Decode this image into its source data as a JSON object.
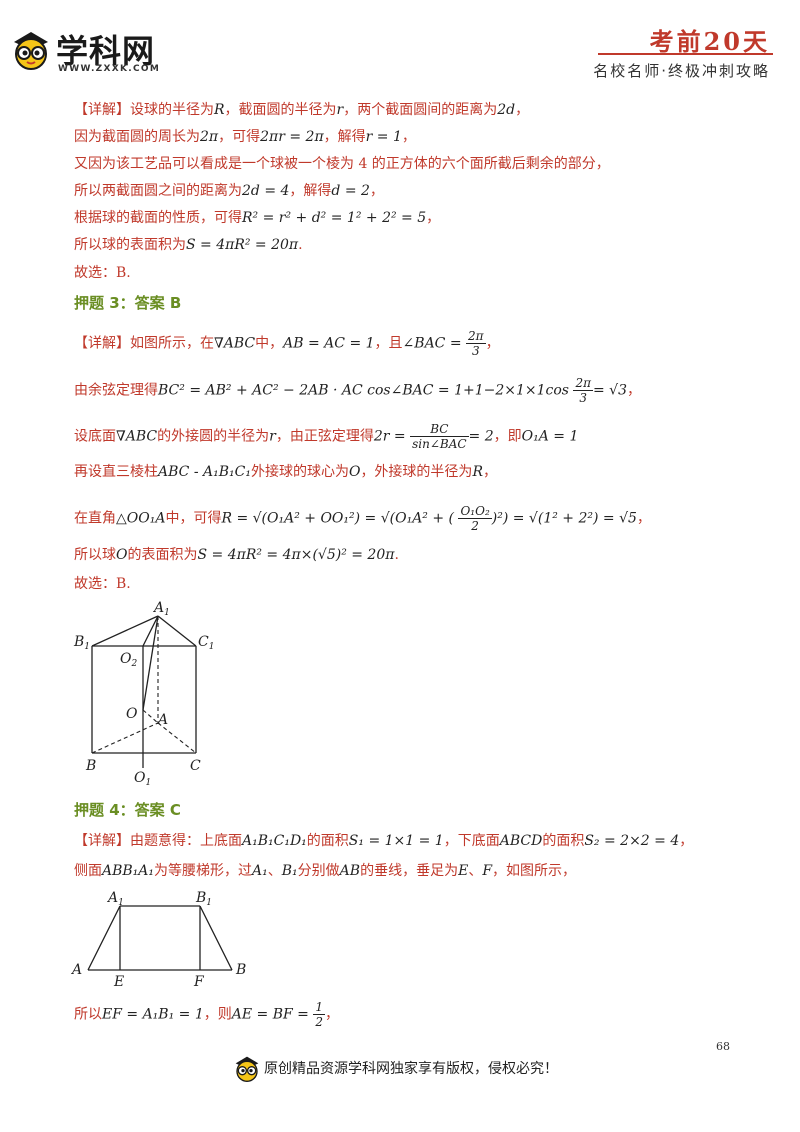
{
  "header": {
    "logo_text": "学科网",
    "logo_url": "WWW.ZXXK.COM",
    "title": "考前20天",
    "subtitle": "名校名师·终极冲刺攻略"
  },
  "section2": {
    "lines": [
      {
        "tag": "【详解】",
        "before": "设球的半径为",
        "m1": "R",
        "mid1": "，截面圆的半径为",
        "m2": "r",
        "mid2": "，两个截面圆间的距离为",
        "m3": "2d",
        "after": "，"
      },
      {
        "before": "因为截面圆的周长为",
        "m1": "2π",
        "mid1": "，可得",
        "m2": "2πr = 2π",
        "mid2": "，解得",
        "m3": "r = 1",
        "after": "，"
      },
      {
        "before": "又因为该工艺品可以看成是一个球被一个棱为 4 的正方体的六个面所截后剩余的部分，"
      },
      {
        "before": "所以两截面圆之间的距离为",
        "m1": "2d = 4",
        "mid1": "，解得",
        "m2": "d = 2",
        "after": "，"
      },
      {
        "before": "根据球的截面的性质，可得",
        "m1": "R² = r² + d² = 1² + 2² = 5",
        "after": "，"
      },
      {
        "before": "所以球的表面积为",
        "m1": "S = 4πR² = 20π",
        "after": "."
      },
      {
        "before": "故选：B."
      }
    ]
  },
  "section3": {
    "heading": "押题 3：答案 B",
    "l1": {
      "tag": "【详解】",
      "a": "如图所示，在",
      "m1": "∇ABC",
      "b": "中，",
      "m2": "AB = AC = 1",
      "c": "，且",
      "m3": "∠BAC =",
      "fn": "2π",
      "fd": "3",
      "d": "，"
    },
    "l2": {
      "a": "由余弦定理得",
      "m1": "BC² = AB² + AC² − 2AB · AC cos∠BAC = 1+1−2×1×1cos",
      "fn": "2π",
      "fd": "3",
      "m2": "= √3",
      "d": "，"
    },
    "l3": {
      "a": "设底面",
      "m1": "∇ABC",
      "b": "的外接圆的半径为",
      "m2": "r",
      "c": "，由正弦定理得",
      "m3": "2r =",
      "fn": "BC",
      "fd": "sin∠BAC",
      "m4": "= 2",
      "d": "，即",
      "m5": "O₁A = 1"
    },
    "l4": {
      "a": "再设直三棱柱",
      "m1": "ABC - A₁B₁C₁",
      "b": "外接球的球心为",
      "m2": "O",
      "c": "，外接球的半径为",
      "m3": "R",
      "d": "，"
    },
    "l5": {
      "a": "在直角",
      "m1": "△OO₁A",
      "b": "中，可得",
      "m2": "R = √(O₁A² + OO₁²) = √(O₁A² + (",
      "fn": "O₁O₂",
      "fd": "2",
      "m3": ")²) = √(1² + 2²) = √5",
      "d": "，"
    },
    "l6": {
      "a": "所以球",
      "m1": "O",
      "b": "的表面积为",
      "m2": "S = 4πR² = 4π×(√5)² = 20π",
      "d": "."
    },
    "l7": "故选：B.",
    "figure_labels": {
      "A1": "A",
      "B1": "B",
      "C1": "C",
      "O2": "O",
      "O": "O",
      "A": "A",
      "B": "B",
      "C": "C",
      "O1": "O",
      "sub1": "1",
      "sub2": "2"
    }
  },
  "section4": {
    "heading": "押题 4：答案 C",
    "l1": {
      "tag": "【详解】",
      "a": "由题意得：上底面",
      "m1": "A₁B₁C₁D₁",
      "b": "的面积",
      "m2": "S₁ = 1×1 = 1",
      "c": "，下底面",
      "m3": "ABCD",
      "d": "的面积",
      "m4": "S₂ = 2×2 = 4",
      "e": "，"
    },
    "l2": {
      "a": "侧面",
      "m1": "ABB₁A₁",
      "b": "为等腰梯形，过",
      "m2": "A₁",
      "c": "、",
      "m3": "B₁",
      "d": "分别做",
      "m4": "AB",
      "e": "的垂线，垂足为",
      "m5": "E",
      "f": "、",
      "m6": "F",
      "g": "，如图所示，"
    },
    "l3": {
      "a": "所以",
      "m1": "EF = A₁B₁ = 1",
      "b": "，则",
      "m2": "AE = BF =",
      "fn": "1",
      "fd": "2",
      "c": "，"
    },
    "figure_labels": {
      "A1": "A",
      "B1": "B",
      "A": "A",
      "E": "E",
      "F": "F",
      "B": "B",
      "sub1": "1"
    }
  },
  "footer": {
    "page_number": "68",
    "text": "原创精品资源学科网独家享有版权，侵权必究！"
  }
}
